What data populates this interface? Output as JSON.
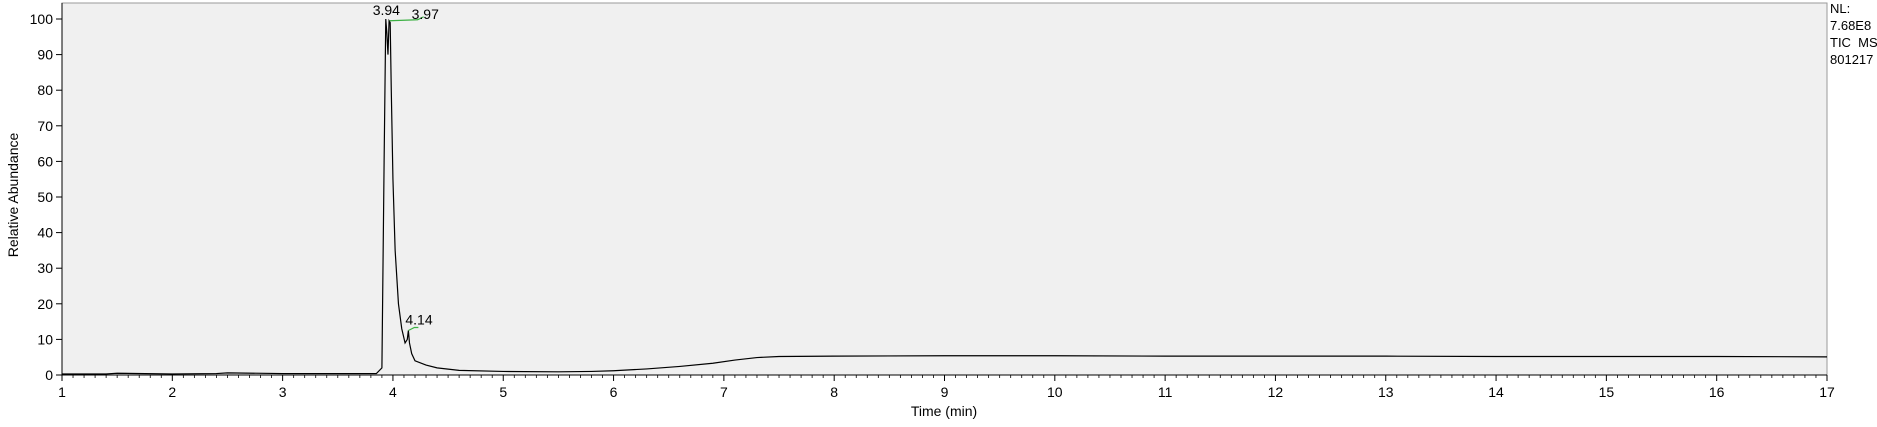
{
  "chart_data": {
    "type": "line",
    "title": "",
    "xlabel": "Time (min)",
    "ylabel": "Relative Abundance",
    "xlim": [
      1,
      17
    ],
    "ylim": [
      0,
      100
    ],
    "x_ticks": [
      "1",
      "2",
      "3",
      "4",
      "5",
      "6",
      "7",
      "8",
      "9",
      "10",
      "11",
      "12",
      "13",
      "14",
      "15",
      "16",
      "17"
    ],
    "y_ticks": [
      "0",
      "10",
      "20",
      "30",
      "40",
      "50",
      "60",
      "70",
      "80",
      "90",
      "100"
    ],
    "grid": false,
    "series": [
      {
        "color": "#000000",
        "x": [
          1.0,
          1.4,
          1.5,
          2.0,
          2.4,
          2.5,
          3.0,
          3.5,
          3.85,
          3.9,
          3.92,
          3.935,
          3.945,
          3.955,
          3.965,
          3.975,
          3.985,
          4.0,
          4.02,
          4.05,
          4.08,
          4.11,
          4.13,
          4.14,
          4.15,
          4.17,
          4.2,
          4.3,
          4.4,
          4.6,
          5.0,
          5.5,
          5.8,
          6.0,
          6.3,
          6.6,
          6.9,
          7.1,
          7.3,
          7.5,
          8.0,
          9.0,
          10.0,
          11.0,
          12.0,
          13.0,
          14.0,
          15.0,
          16.0,
          17.0
        ],
        "values": [
          0.3,
          0.3,
          0.5,
          0.3,
          0.4,
          0.6,
          0.4,
          0.4,
          0.4,
          2.0,
          60.0,
          100.0,
          96.0,
          90.0,
          99.5,
          99.0,
          80.0,
          55.0,
          35.0,
          20.0,
          13.0,
          9.0,
          10.0,
          12.5,
          9.0,
          6.0,
          4.0,
          2.8,
          2.0,
          1.3,
          1.0,
          0.9,
          1.0,
          1.2,
          1.7,
          2.4,
          3.3,
          4.2,
          4.9,
          5.2,
          5.3,
          5.4,
          5.4,
          5.3,
          5.3,
          5.3,
          5.2,
          5.2,
          5.2,
          5.1
        ]
      }
    ],
    "annotations": [
      {
        "text": "3.94",
        "x": 3.94,
        "y": 100.0
      },
      {
        "text": "3.97",
        "x": 3.97,
        "y": 99.5
      },
      {
        "text": "4.14",
        "x": 4.14,
        "y": 12.5
      }
    ],
    "side_info": [
      "NL:",
      "7.68E8",
      "TIC  MS",
      "801217"
    ],
    "colors": {
      "plot_background": "#f0f0f0",
      "trace": "#000000",
      "peak_marker": "#3cb043"
    }
  }
}
